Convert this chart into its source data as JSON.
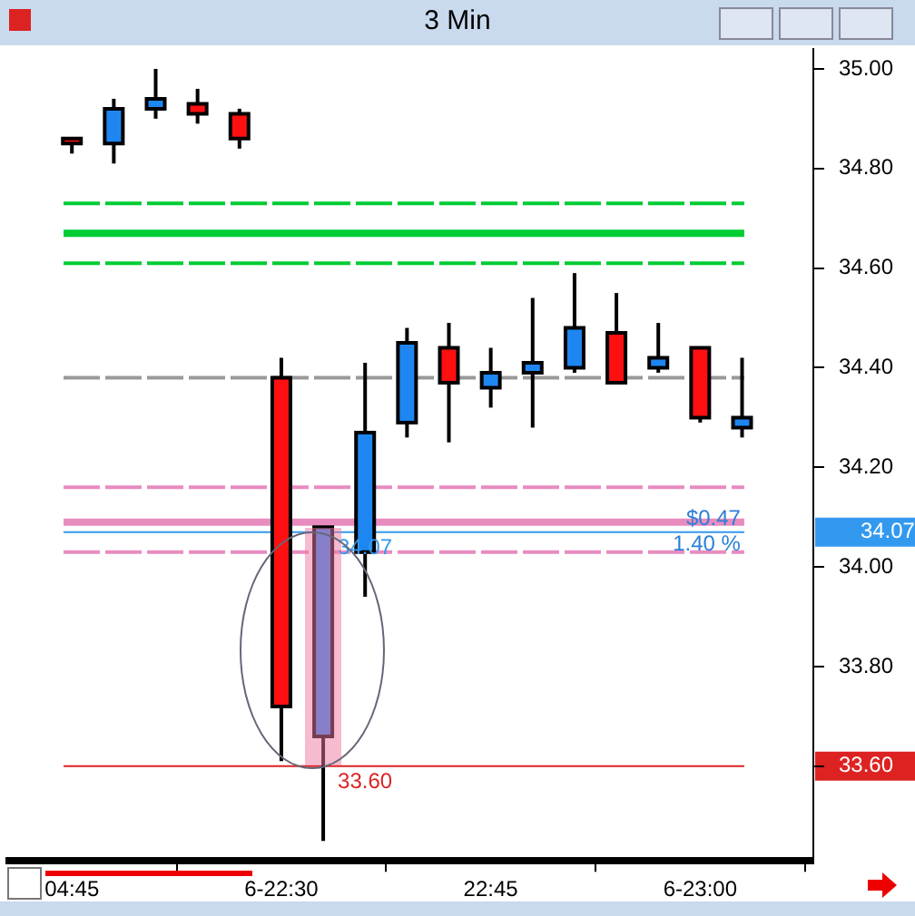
{
  "chart_data": {
    "type": "candlestick",
    "title": "3 Min",
    "categories": [
      "04:45",
      null,
      null,
      null,
      null,
      "6-22:30",
      null,
      null,
      null,
      null,
      "22:45",
      null,
      null,
      null,
      null,
      "6-23:00",
      null
    ],
    "ohlc": [
      [
        34.86,
        34.86,
        34.83,
        34.85
      ],
      [
        34.85,
        34.94,
        34.81,
        34.92
      ],
      [
        34.92,
        35.0,
        34.9,
        34.94
      ],
      [
        34.93,
        34.96,
        34.89,
        34.91
      ],
      [
        34.91,
        34.92,
        34.84,
        34.86
      ],
      [
        34.38,
        34.42,
        33.61,
        33.72
      ],
      [
        33.66,
        34.08,
        33.45,
        34.08
      ],
      [
        34.03,
        34.41,
        33.94,
        34.27
      ],
      [
        34.29,
        34.48,
        34.26,
        34.45
      ],
      [
        34.44,
        34.49,
        34.25,
        34.37
      ],
      [
        34.36,
        34.44,
        34.32,
        34.39
      ],
      [
        34.39,
        34.54,
        34.28,
        34.41
      ],
      [
        34.4,
        34.59,
        34.39,
        34.48
      ],
      [
        34.47,
        34.55,
        34.37,
        34.37
      ],
      [
        34.4,
        34.49,
        34.39,
        34.42
      ],
      [
        34.44,
        34.44,
        34.29,
        34.3
      ],
      [
        34.28,
        34.42,
        34.26,
        34.3
      ]
    ],
    "ylim": [
      33.41,
      35.04
    ],
    "yticks": [
      {
        "value": 33.6,
        "label": "33.60"
      },
      {
        "value": 33.8,
        "label": "33.80"
      },
      {
        "value": 34,
        "label": "34.00"
      },
      {
        "value": 34.2,
        "label": "34.20"
      },
      {
        "value": 34.4,
        "label": "34.40"
      },
      {
        "value": 34.6,
        "label": "34.60"
      },
      {
        "value": 34.8,
        "label": "34.80"
      },
      {
        "value": 35,
        "label": "35.00"
      }
    ],
    "ref_lines": [
      {
        "axis": "y",
        "value": 34.73,
        "color": "#00cc33",
        "line_style": "dashed"
      },
      {
        "axis": "y",
        "value": 34.67,
        "color": "#00cc33",
        "line_style": "solid"
      },
      {
        "axis": "y",
        "value": 34.61,
        "color": "#00cc33",
        "line_style": "dashed"
      },
      {
        "axis": "y",
        "value": 34.38,
        "color": "#999999",
        "line_style": "dashed"
      },
      {
        "axis": "y",
        "value": 34.16,
        "color": "#e88cc0",
        "line_style": "dashed"
      },
      {
        "axis": "y",
        "value": 34.09,
        "color": "#e88cc0",
        "line_style": "solid"
      },
      {
        "axis": "y",
        "value": 34.03,
        "color": "#e88cc0",
        "line_style": "dashed"
      },
      {
        "axis": "y",
        "value": 34.07,
        "color": "#3399ee",
        "line_style": "solid",
        "label": "34.07"
      },
      {
        "axis": "y",
        "value": 33.6,
        "color": "#dd2222",
        "line_style": "solid",
        "label": "33.60"
      }
    ],
    "annotations": [
      "$0.47",
      "1.40 %"
    ],
    "grid": false,
    "legend": false
  }
}
